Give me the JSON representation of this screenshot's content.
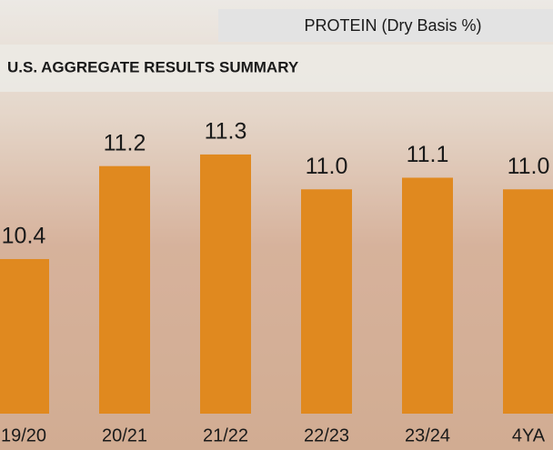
{
  "chart_data": {
    "type": "bar",
    "title": "PROTEIN (Dry Basis %)",
    "subtitle": "U.S. AGGREGATE RESULTS SUMMARY",
    "categories": [
      "19/20",
      "20/21",
      "21/22",
      "22/23",
      "23/24",
      "4YA"
    ],
    "values": [
      10.4,
      11.2,
      11.3,
      11.0,
      11.1,
      11.0
    ],
    "value_labels": [
      "10.4",
      "11.2",
      "11.3",
      "11.0",
      "11.1",
      "11.0"
    ],
    "color": "#e0891f",
    "ylim": [
      9.07,
      11.8
    ]
  }
}
